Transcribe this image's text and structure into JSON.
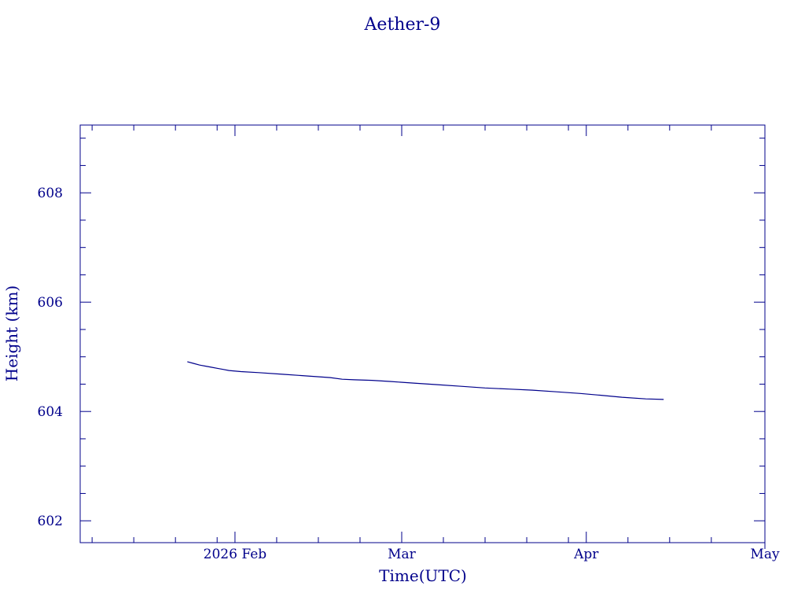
{
  "chart_data": {
    "type": "line",
    "title": "Aether-9",
    "xlabel": "Time(UTC)",
    "ylabel": "Height (km)",
    "xlim": [
      "2026-01-06",
      "2026-05-01"
    ],
    "ylim": [
      601.6,
      609.24
    ],
    "x_ticks": [
      {
        "date": "2026-02-01",
        "label": "2026 Feb"
      },
      {
        "date": "2026-03-01",
        "label": "Mar"
      },
      {
        "date": "2026-04-01",
        "label": "Apr"
      },
      {
        "date": "2026-05-01",
        "label": "May"
      }
    ],
    "y_ticks": [
      602,
      604,
      606,
      608
    ],
    "grid": false,
    "color": "#00008b",
    "series": [
      {
        "x": [
          "2026-01-24",
          "2026-01-25",
          "2026-01-26",
          "2026-01-27",
          "2026-01-28",
          "2026-01-29",
          "2026-01-30",
          "2026-01-31",
          "2026-02-02",
          "2026-02-05",
          "2026-02-09",
          "2026-02-13",
          "2026-02-17",
          "2026-02-19",
          "2026-02-21",
          "2026-02-24",
          "2026-02-27",
          "2026-03-03",
          "2026-03-07",
          "2026-03-11",
          "2026-03-15",
          "2026-03-19",
          "2026-03-23",
          "2026-03-27",
          "2026-03-31",
          "2026-04-03",
          "2026-04-07",
          "2026-04-11",
          "2026-04-14"
        ],
        "y": [
          604.91,
          604.88,
          604.85,
          604.83,
          604.81,
          604.79,
          604.77,
          604.75,
          604.73,
          604.71,
          604.68,
          604.65,
          604.62,
          604.59,
          604.58,
          604.57,
          604.55,
          604.52,
          604.49,
          604.46,
          604.43,
          604.41,
          604.39,
          604.36,
          604.33,
          604.3,
          604.26,
          604.23,
          604.22
        ]
      }
    ]
  }
}
